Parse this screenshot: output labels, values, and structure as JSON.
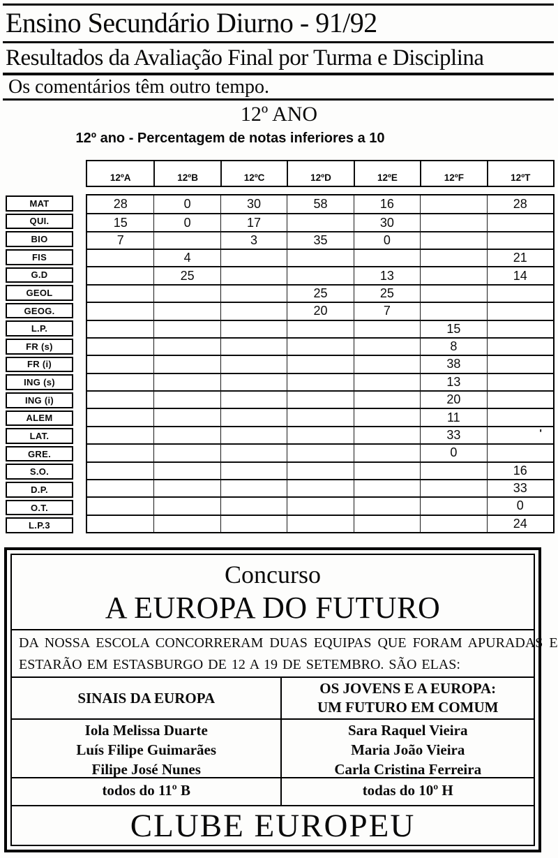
{
  "header": {
    "title": "Ensino Secundário Diurno - 91/92",
    "subtitle": "Resultados da Avaliação Final por Turma e Disciplina",
    "comment": "Os comentários têm outro tempo.",
    "section_heading": "12º ANO"
  },
  "grades_table": {
    "caption": "12º ano - Percentagem de notas inferiores a 10",
    "columns": [
      "12ºA",
      "12ºB",
      "12ºC",
      "12ºD",
      "12ºE",
      "12ºF",
      "12ºT"
    ],
    "rows": [
      {
        "label": "MAT",
        "values": [
          "28",
          "0",
          "30",
          "58",
          "16",
          "",
          "28"
        ]
      },
      {
        "label": "QUI.",
        "values": [
          "15",
          "0",
          "17",
          "",
          "30",
          "",
          ""
        ]
      },
      {
        "label": "BIO",
        "values": [
          "7",
          "",
          "3",
          "35",
          "0",
          "",
          ""
        ]
      },
      {
        "label": "FIS",
        "values": [
          "",
          "4",
          "",
          "",
          "",
          "",
          "21"
        ]
      },
      {
        "label": "G.D",
        "values": [
          "",
          "25",
          "",
          "",
          "13",
          "",
          "14"
        ]
      },
      {
        "label": "GEOL",
        "values": [
          "",
          "",
          "",
          "25",
          "25",
          "",
          ""
        ]
      },
      {
        "label": "GEOG.",
        "values": [
          "",
          "",
          "",
          "20",
          "7",
          "",
          ""
        ]
      },
      {
        "label": "L.P.",
        "values": [
          "",
          "",
          "",
          "",
          "",
          "15",
          ""
        ]
      },
      {
        "label": "FR (s)",
        "values": [
          "",
          "",
          "",
          "",
          "",
          "8",
          ""
        ]
      },
      {
        "label": "FR (i)",
        "values": [
          "",
          "",
          "",
          "",
          "",
          "38",
          ""
        ]
      },
      {
        "label": "ING (s)",
        "values": [
          "",
          "",
          "",
          "",
          "",
          "13",
          ""
        ]
      },
      {
        "label": "ING (i)",
        "values": [
          "",
          "",
          "",
          "",
          "",
          "20",
          ""
        ]
      },
      {
        "label": "ALEM",
        "values": [
          "",
          "",
          "",
          "",
          "",
          "11",
          ""
        ]
      },
      {
        "label": "LAT.",
        "values": [
          "",
          "",
          "",
          "",
          "",
          "33",
          "'"
        ]
      },
      {
        "label": "GRE.",
        "values": [
          "",
          "",
          "",
          "",
          "",
          "0",
          ""
        ]
      },
      {
        "label": "S.O.",
        "values": [
          "",
          "",
          "",
          "",
          "",
          "",
          "16"
        ]
      },
      {
        "label": "D.P.",
        "values": [
          "",
          "",
          "",
          "",
          "",
          "",
          "33"
        ]
      },
      {
        "label": "O.T.",
        "values": [
          "",
          "",
          "",
          "",
          "",
          "",
          "0"
        ]
      },
      {
        "label": "L.P.3",
        "values": [
          "",
          "",
          "",
          "",
          "",
          "",
          "24"
        ]
      }
    ]
  },
  "contest": {
    "kicker": "Concurso",
    "title": "A EUROPA DO FUTURO",
    "intro_lines": [
      "DA NOSSA ESCOLA CONCORRERAM DUAS EQUIPAS QUE FORAM APURADAS E",
      "ESTARÃO EM ESTASBURGO DE 12 A 19 DE SETEMBRO. SÃO ELAS:"
    ],
    "teams": [
      {
        "name_lines": [
          "SINAIS DA EUROPA"
        ],
        "members": [
          "Iola Melissa Duarte",
          "Luís Filipe Guimarães",
          "Filipe José Nunes"
        ],
        "footer": "todos do 11º B"
      },
      {
        "name_lines": [
          "OS JOVENS E A EUROPA:",
          "UM FUTURO EM COMUM"
        ],
        "members": [
          "Sara Raquel Vieira",
          "Maria João Vieira",
          "Carla Cristina Ferreira"
        ],
        "footer": "todas do 10º H"
      }
    ],
    "footer": "CLUBE EUROPEU"
  }
}
